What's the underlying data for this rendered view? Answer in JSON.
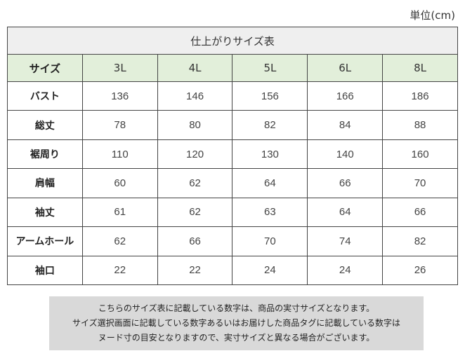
{
  "unit_label": "単位(cm)",
  "table": {
    "title": "仕上がりサイズ表",
    "header_label": "サイズ",
    "sizes": [
      "3L",
      "4L",
      "5L",
      "6L",
      "8L"
    ],
    "rows": [
      {
        "label": "バスト",
        "values": [
          "136",
          "146",
          "156",
          "166",
          "186"
        ]
      },
      {
        "label": "総丈",
        "values": [
          "78",
          "80",
          "82",
          "84",
          "88"
        ]
      },
      {
        "label": "裾周り",
        "values": [
          "110",
          "120",
          "130",
          "140",
          "160"
        ]
      },
      {
        "label": "肩幅",
        "values": [
          "60",
          "62",
          "64",
          "66",
          "70"
        ]
      },
      {
        "label": "袖丈",
        "values": [
          "61",
          "62",
          "63",
          "64",
          "66"
        ]
      },
      {
        "label": "アームホール",
        "values": [
          "62",
          "66",
          "70",
          "74",
          "82"
        ]
      },
      {
        "label": "袖口",
        "values": [
          "22",
          "22",
          "24",
          "24",
          "26"
        ]
      }
    ]
  },
  "note": {
    "lines": [
      "こちらのサイズ表に記載している数字は、商品の実寸サイズとなります。",
      "サイズ選択画面に記載している数字あるいはお届けした商品タグに記載している数字は",
      "ヌード寸の目安となりますので、実寸サイズと異なる場合がございます。"
    ]
  }
}
